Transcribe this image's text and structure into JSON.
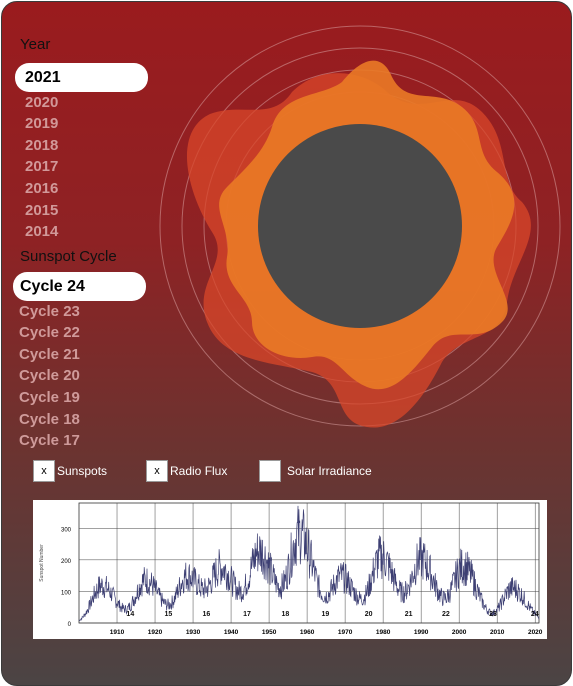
{
  "year_section": {
    "heading": "Year",
    "selected": "2021",
    "options": [
      "2020",
      "2019",
      "2018",
      "2017",
      "2016",
      "2015",
      "2014"
    ]
  },
  "cycle_section": {
    "heading": "Sunspot Cycle",
    "selected": "Cycle 24",
    "options": [
      "Cycle 23",
      "Cycle 22",
      "Cycle 21",
      "Cycle 20",
      "Cycle 19",
      "Cycle 18",
      "Cycle 17"
    ]
  },
  "toggles": [
    {
      "label": "Sunspots",
      "checked": true,
      "mark": "x"
    },
    {
      "label": "Radio Flux",
      "checked": true,
      "mark": "x"
    },
    {
      "label": "Solar Irradiance",
      "checked": false,
      "mark": ""
    }
  ],
  "colors": {
    "accent": "#e87a2a",
    "sun_core": "#4a4a4a",
    "flare": "#d9472a"
  },
  "chart_data": {
    "type": "line",
    "ylabel": "Sunspot Number",
    "ylim": [
      0,
      380
    ],
    "xlim": [
      1900,
      2021
    ],
    "y_ticks": [
      0,
      100,
      200,
      300
    ],
    "x_ticks": [
      1910,
      1920,
      1930,
      1940,
      1950,
      1960,
      1970,
      1980,
      1990,
      2000,
      2010,
      2020
    ],
    "cycle_labels": [
      {
        "x": 1913.5,
        "label": "14"
      },
      {
        "x": 1923.5,
        "label": "15"
      },
      {
        "x": 1933.5,
        "label": "16"
      },
      {
        "x": 1944.2,
        "label": "17"
      },
      {
        "x": 1954.3,
        "label": "18"
      },
      {
        "x": 1964.8,
        "label": "19"
      },
      {
        "x": 1976.2,
        "label": "20"
      },
      {
        "x": 1986.7,
        "label": "21"
      },
      {
        "x": 1996.5,
        "label": "22"
      },
      {
        "x": 2008.9,
        "label": "23"
      },
      {
        "x": 2019.9,
        "label": "24"
      }
    ],
    "cycle_peaks": [
      {
        "x": 1906,
        "y": 140
      },
      {
        "x": 1917.5,
        "y": 160
      },
      {
        "x": 1928.5,
        "y": 175
      },
      {
        "x": 1937.5,
        "y": 200
      },
      {
        "x": 1947.5,
        "y": 265
      },
      {
        "x": 1958,
        "y": 330
      },
      {
        "x": 1969,
        "y": 170
      },
      {
        "x": 1979.5,
        "y": 245
      },
      {
        "x": 1990,
        "y": 235
      },
      {
        "x": 2001,
        "y": 210
      },
      {
        "x": 2014,
        "y": 130
      }
    ],
    "grid": true,
    "series_color": "#3d3f73"
  }
}
